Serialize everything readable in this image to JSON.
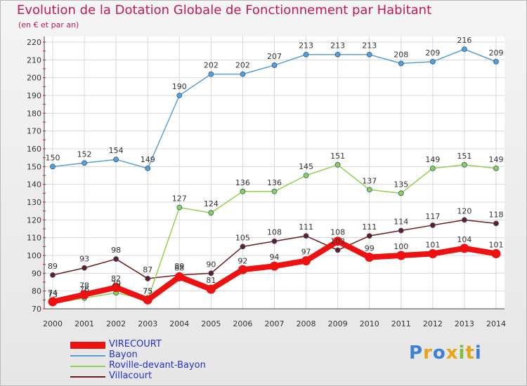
{
  "title": "Evolution de la Dotation Globale de Fonctionnement par Habitant",
  "subtitle": "(en € et par an)",
  "logo": {
    "text": "Proxiti"
  },
  "chart_data": {
    "type": "line",
    "title": "Evolution de la Dotation Globale de Fonctionnement par Habitant",
    "subtitle": "(en € et par an)",
    "xlabel": "",
    "ylabel": "",
    "x": [
      2000,
      2001,
      2002,
      2003,
      2004,
      2005,
      2006,
      2007,
      2008,
      2009,
      2010,
      2011,
      2012,
      2013,
      2014
    ],
    "ylim": [
      70,
      220
    ],
    "yticks": [
      70,
      80,
      90,
      100,
      110,
      120,
      130,
      140,
      150,
      160,
      170,
      180,
      190,
      200,
      210,
      220
    ],
    "grid": true,
    "legend_position": "bottom-left",
    "series": [
      {
        "name": "VIRECOURT",
        "color": "#ee1111",
        "values": [
          74,
          78,
          82,
          75,
          88,
          81,
          92,
          94,
          97,
          108,
          99,
          100,
          101,
          104,
          101
        ],
        "labels": [
          "74",
          "78",
          "82",
          "75",
          "88",
          "81",
          "92",
          "94",
          "97",
          "108",
          "99",
          "100",
          "101",
          "104",
          "101"
        ]
      },
      {
        "name": "Bayon",
        "color": "#5a9fd4",
        "values": [
          150,
          152,
          154,
          149,
          190,
          202,
          202,
          207,
          213,
          213,
          213,
          208,
          209,
          216,
          209
        ],
        "labels": [
          "150",
          "152",
          "154",
          "149",
          "190",
          "202",
          "202",
          "207",
          "213",
          "213",
          "213",
          "208",
          "209",
          "216",
          "209"
        ]
      },
      {
        "name": "Roville-devant-Bayon",
        "color": "#8fd14f",
        "values": [
          73,
          76,
          79,
          75,
          127,
          124,
          136,
          136,
          145,
          151,
          137,
          135,
          149,
          151,
          149
        ],
        "labels": [
          "73",
          "76",
          "79",
          "75",
          "127",
          "124",
          "136",
          "136",
          "145",
          "151",
          "137",
          "135",
          "149",
          "151",
          "149"
        ]
      },
      {
        "name": "Villacourt",
        "color": "#6b1a1a",
        "values": [
          89,
          93,
          98,
          87,
          89,
          90,
          105,
          108,
          111,
          103,
          111,
          114,
          117,
          120,
          118
        ],
        "labels": [
          "89",
          "93",
          "98",
          "87",
          "89",
          "90",
          "105",
          "108",
          "111",
          "103",
          "111",
          "114",
          "117",
          "120",
          "118"
        ]
      }
    ]
  }
}
